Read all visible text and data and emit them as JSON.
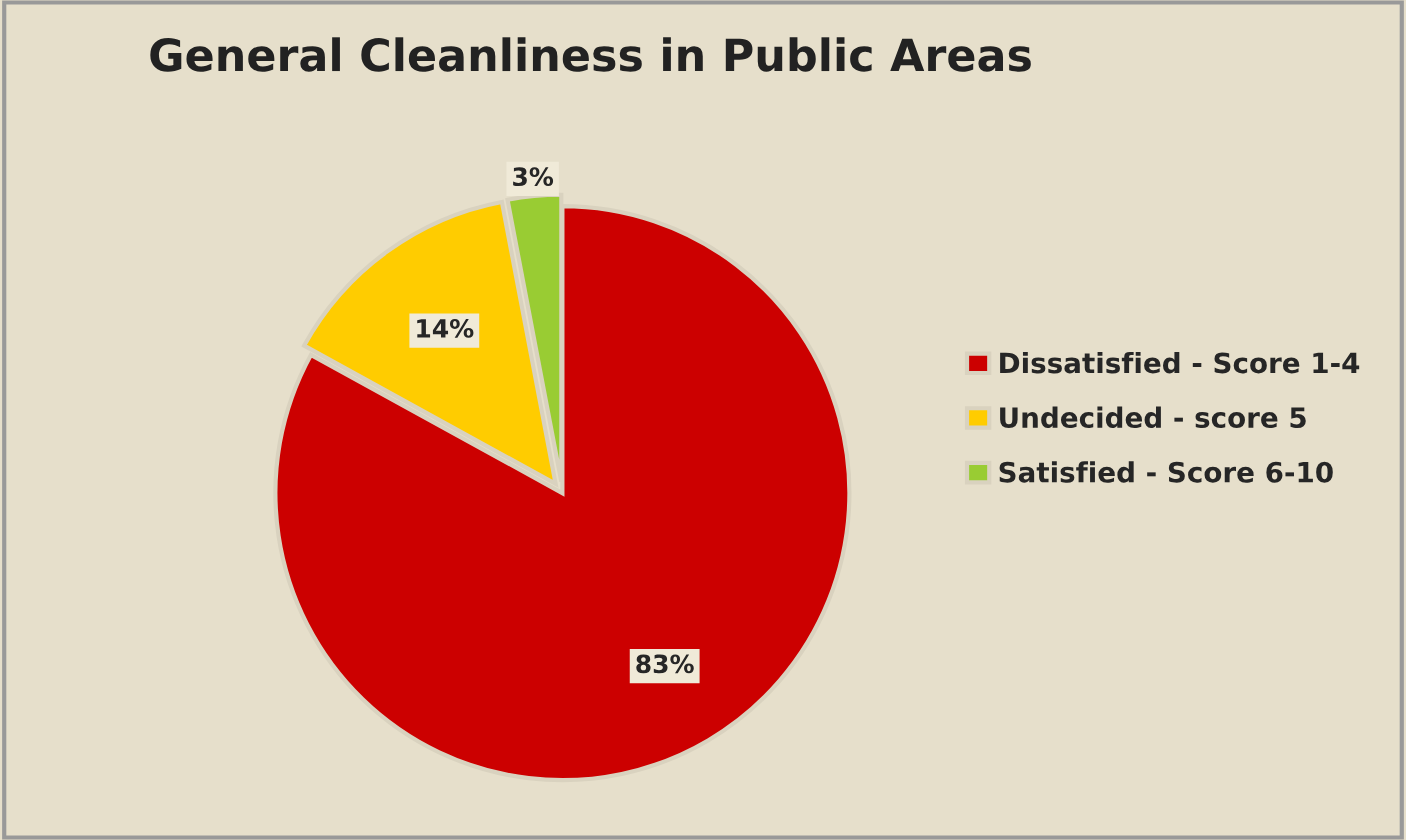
{
  "chart_data": {
    "type": "pie",
    "title": "General Cleanliness in Public Areas",
    "categories": [
      "Dissatisfied - Score 1-4",
      "Undecided - score 5",
      "Satisfied - Score 6-10"
    ],
    "values": [
      83,
      14,
      3
    ],
    "colors": [
      "#cc0000",
      "#ffcc00",
      "#99cc33"
    ],
    "value_labels": [
      "83%",
      "14%",
      "3%"
    ],
    "legend": "right"
  }
}
